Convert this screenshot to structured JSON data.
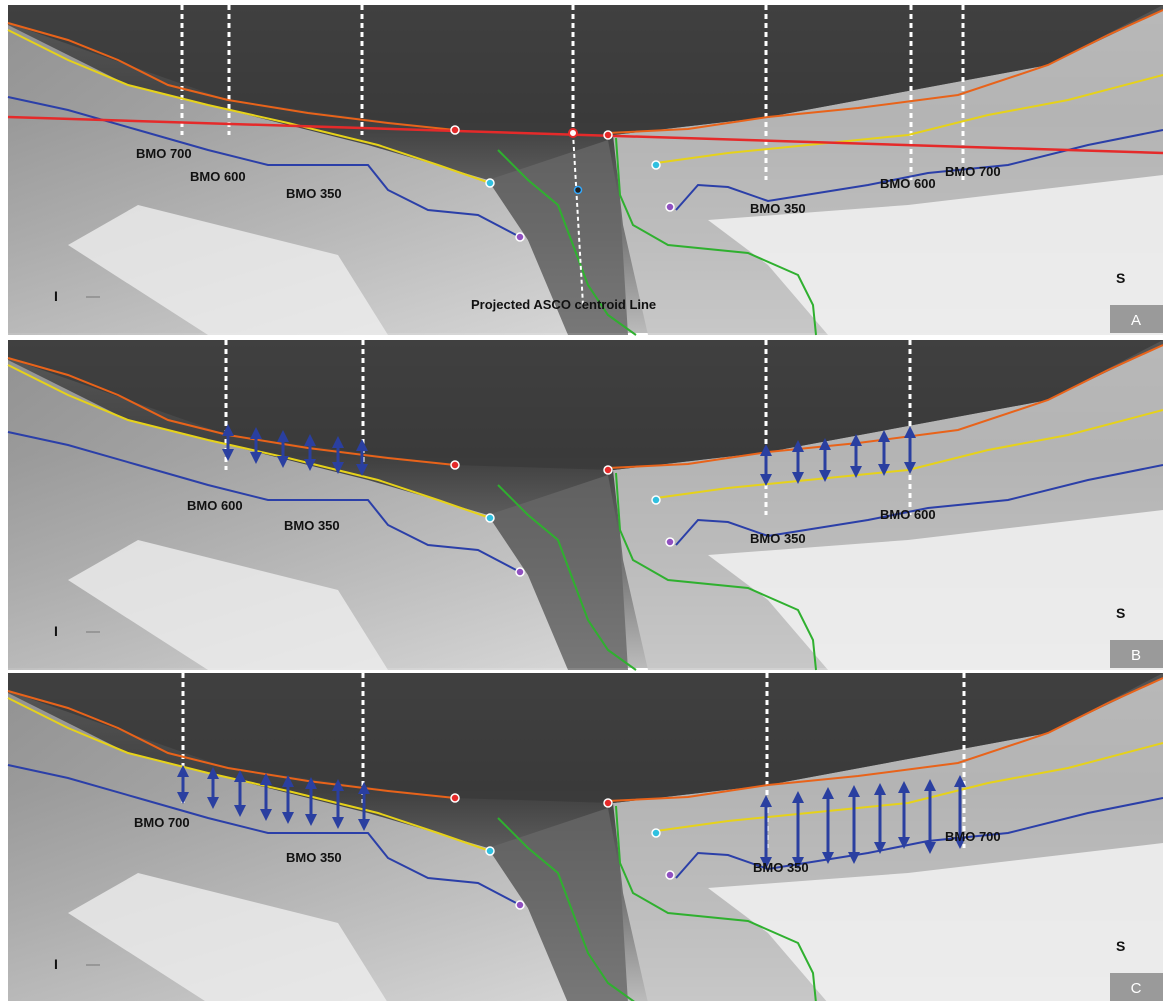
{
  "panels": [
    {
      "label": "A",
      "inferior": "I",
      "superior": "S",
      "annotations": [
        "BMO 700",
        "BMO 600",
        "BMO 350",
        "BMO 350",
        "BMO 600",
        "BMO 700",
        "Projected ASCO centroid Line"
      ]
    },
    {
      "label": "B",
      "inferior": "I",
      "superior": "S",
      "annotations": [
        "BMO 600",
        "BMO 350",
        "BMO 350",
        "BMO 600"
      ]
    },
    {
      "label": "C",
      "inferior": "I",
      "superior": "S",
      "annotations": [
        "BMO 700",
        "BMO 350",
        "BMO 350",
        "BMO 700"
      ]
    }
  ]
}
